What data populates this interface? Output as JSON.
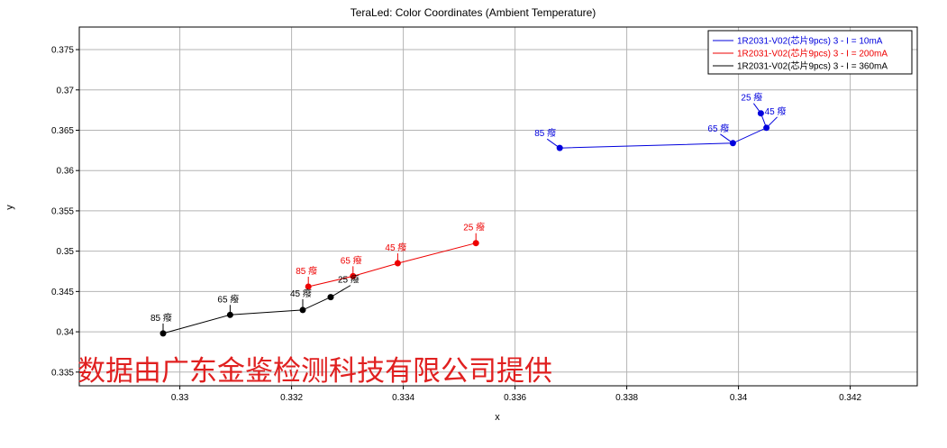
{
  "chart_data": {
    "type": "line",
    "title": "TeraLed: Color Coordinates (Ambient Temperature)",
    "xlabel": "x",
    "ylabel": "y",
    "xlim": [
      0.3282,
      0.3432
    ],
    "ylim": [
      0.3333,
      0.3778
    ],
    "xticks": [
      0.33,
      0.332,
      0.334,
      0.336,
      0.338,
      0.34,
      0.342
    ],
    "yticks": [
      0.335,
      0.34,
      0.345,
      0.35,
      0.355,
      0.36,
      0.365,
      0.37,
      0.375
    ],
    "xtick_labels": [
      "0.33",
      "0.332",
      "0.334",
      "0.336",
      "0.338",
      "0.34",
      "0.342"
    ],
    "ytick_labels": [
      "0.335",
      "0.34",
      "0.345",
      "0.35",
      "0.355",
      "0.36",
      "0.365",
      "0.37",
      "0.375"
    ],
    "grid": true,
    "legend_position": "top-right",
    "series": [
      {
        "name": "1R2031-V02(芯片9pcs) 3 - I = 10mA",
        "color": "#0000dd",
        "points": [
          {
            "x": 0.3368,
            "y": 0.3628,
            "label": "85 癈"
          },
          {
            "x": 0.3399,
            "y": 0.3634,
            "label": "65 癈"
          },
          {
            "x": 0.3405,
            "y": 0.3653,
            "label": "45 癈"
          },
          {
            "x": 0.3404,
            "y": 0.3671,
            "label": "25 癈"
          }
        ]
      },
      {
        "name": "1R2031-V02(芯片9pcs) 3 - I = 200mA",
        "color": "#ee0000",
        "points": [
          {
            "x": 0.3323,
            "y": 0.3456,
            "label": "85 癈"
          },
          {
            "x": 0.3331,
            "y": 0.3469,
            "label": "65 癈"
          },
          {
            "x": 0.3339,
            "y": 0.3485,
            "label": "45 癈"
          },
          {
            "x": 0.3353,
            "y": 0.351,
            "label": "25 癈"
          }
        ]
      },
      {
        "name": "1R2031-V02(芯片9pcs) 3 - I = 360mA",
        "color": "#000000",
        "points": [
          {
            "x": 0.3297,
            "y": 0.3398,
            "label": "85 癈"
          },
          {
            "x": 0.3309,
            "y": 0.3421,
            "label": "65 癈"
          },
          {
            "x": 0.3322,
            "y": 0.3427,
            "label": "45 癈"
          },
          {
            "x": 0.3327,
            "y": 0.3443,
            "label": "25 癈"
          }
        ]
      }
    ]
  },
  "watermark": "数据由广东金鉴检测科技有限公司提供"
}
